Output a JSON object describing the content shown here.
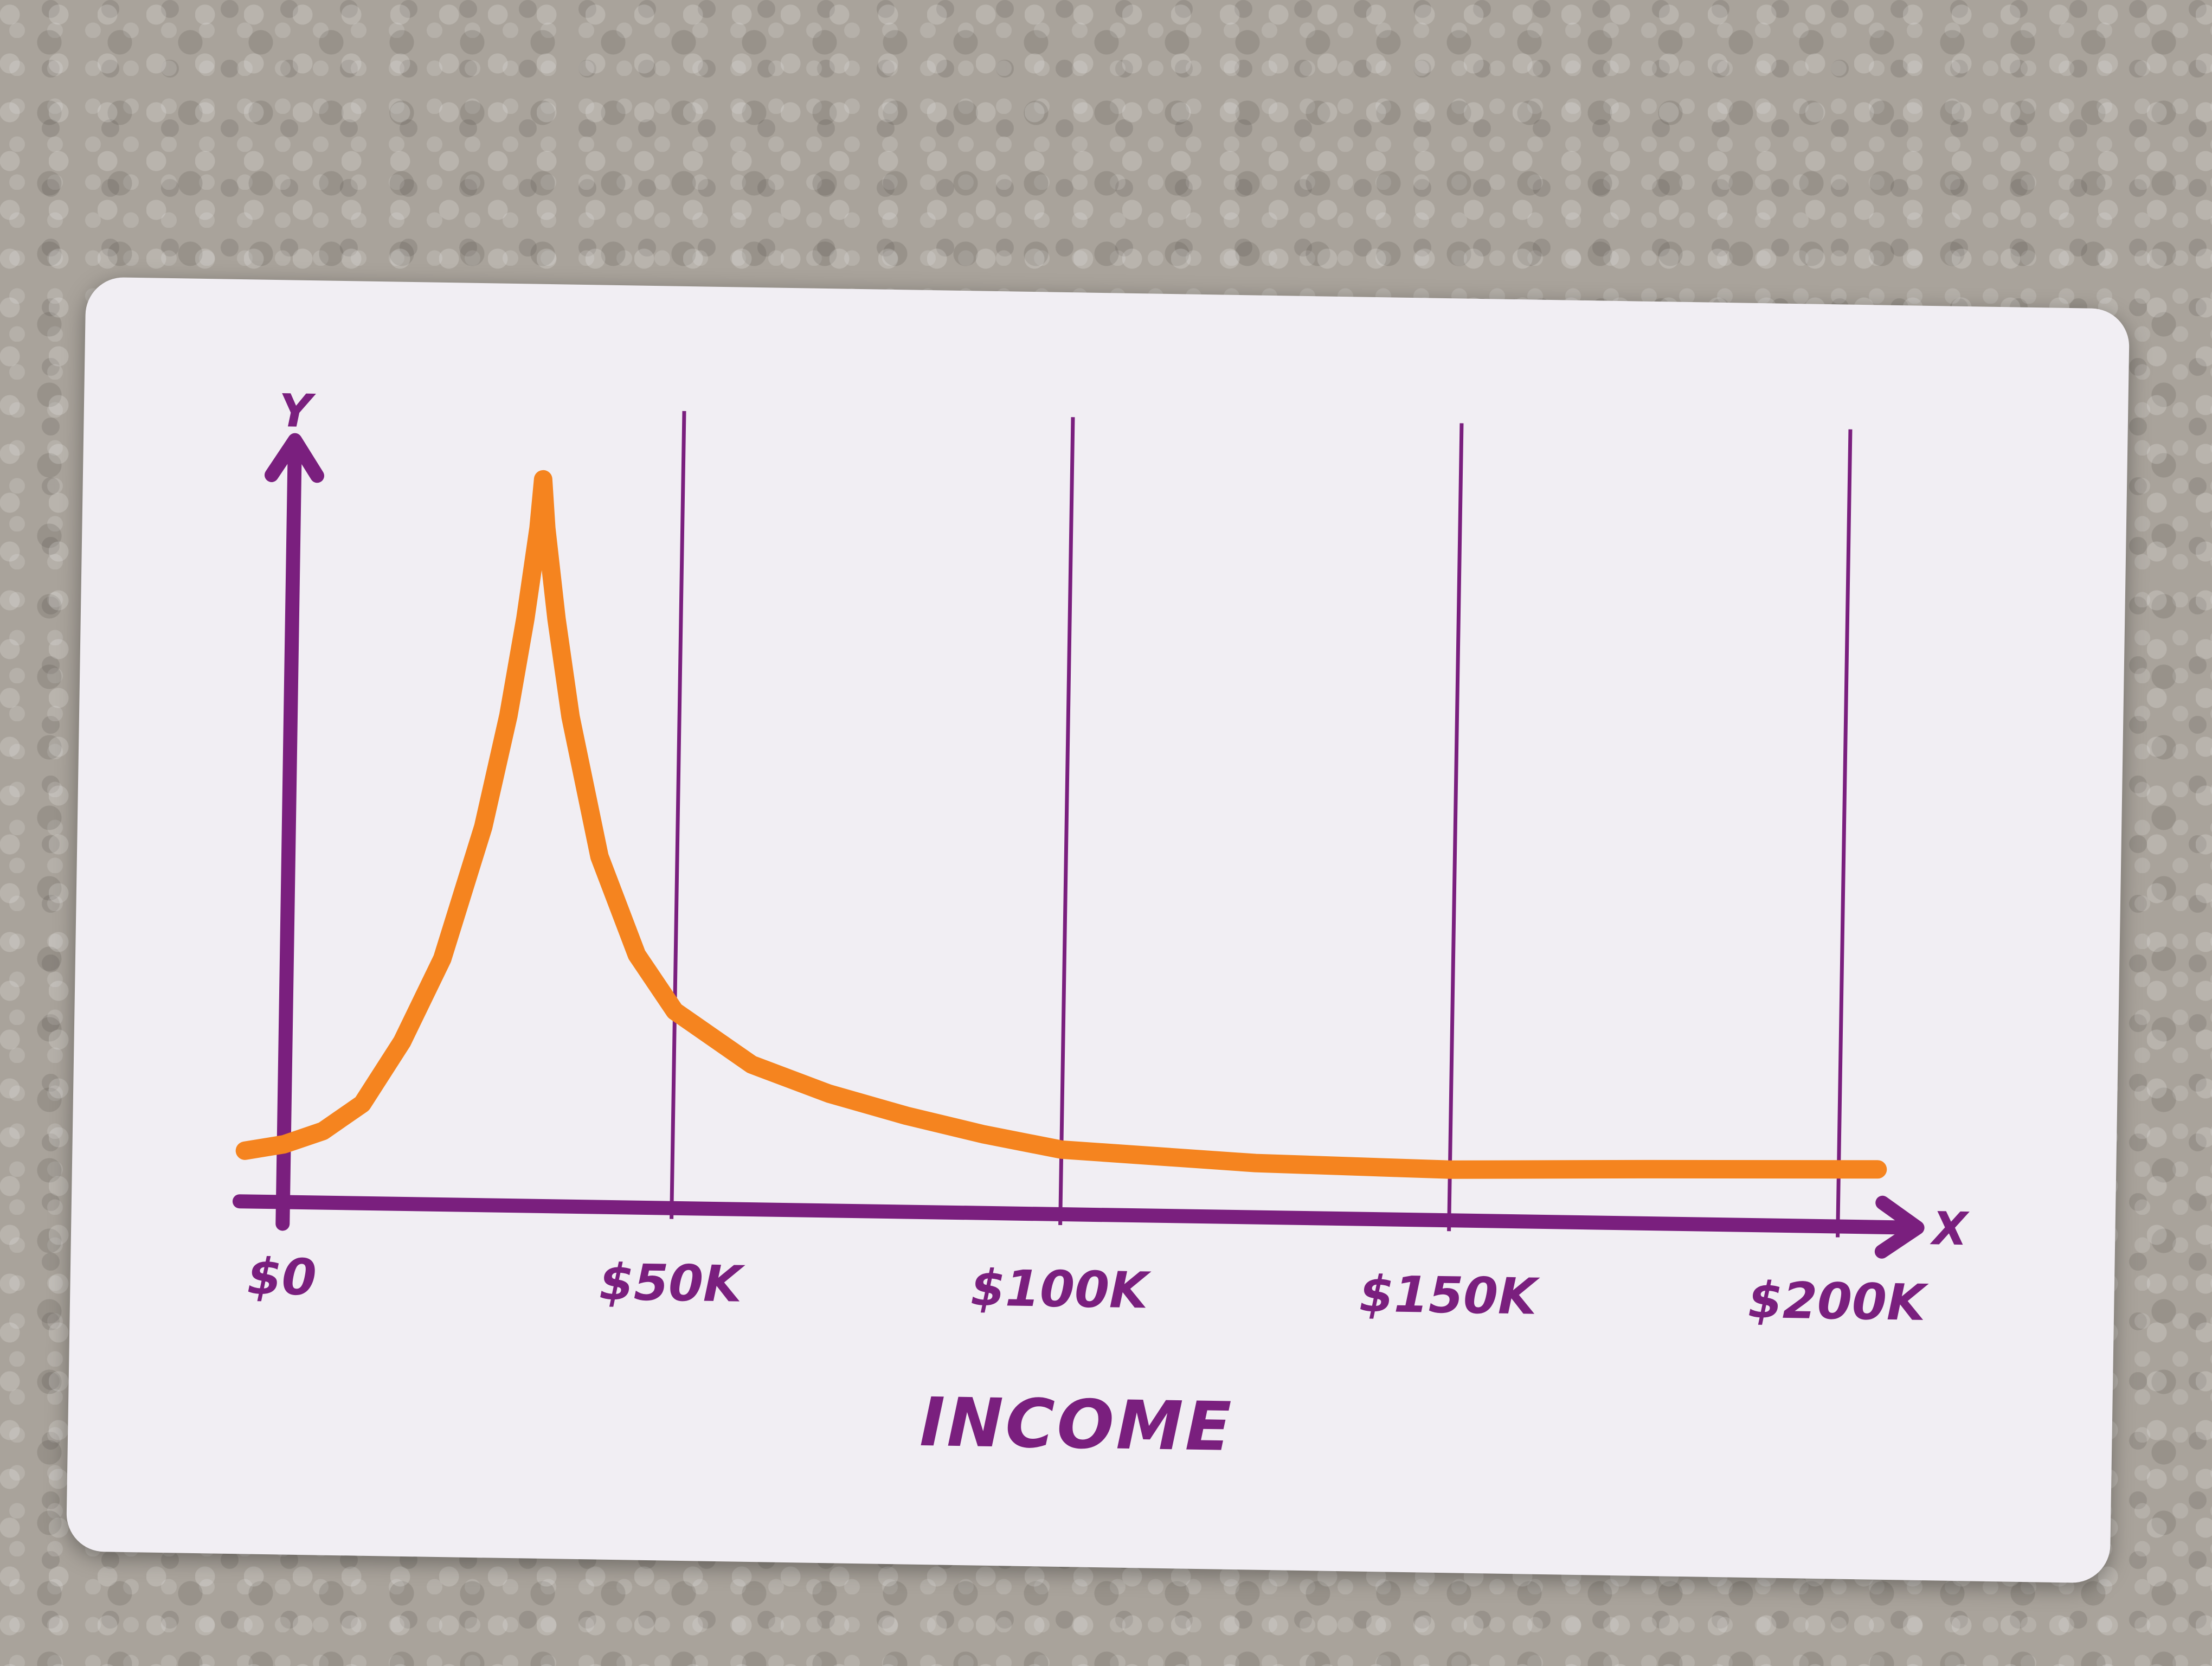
{
  "chart_data": {
    "type": "line",
    "title": "",
    "xlabel": "INCOME",
    "ylabel": "",
    "x_axis_letter": "X",
    "y_axis_letter": "Y",
    "xlim": [
      0,
      205000
    ],
    "ylim": [
      0,
      1
    ],
    "grid": "vertical lines at x ticks",
    "x_ticks": [
      {
        "value": 0,
        "label": "$0"
      },
      {
        "value": 50000,
        "label": "$50K"
      },
      {
        "value": 100000,
        "label": "$100K"
      },
      {
        "value": 150000,
        "label": "$150K"
      },
      {
        "value": 200000,
        "label": "$200K"
      }
    ],
    "series": [
      {
        "color": "#f5841f",
        "x": [
          -5000,
          0,
          5000,
          10000,
          15000,
          20000,
          25000,
          28000,
          30000,
          31500,
          32000,
          32500,
          34000,
          36000,
          40000,
          45000,
          50000,
          60000,
          70000,
          80000,
          90000,
          100000,
          125000,
          150000,
          175000,
          205000
        ],
        "y": [
          0.03,
          0.04,
          0.06,
          0.1,
          0.19,
          0.31,
          0.5,
          0.66,
          0.8,
          0.93,
          1.0,
          0.93,
          0.8,
          0.66,
          0.46,
          0.32,
          0.24,
          0.165,
          0.125,
          0.095,
          0.07,
          0.05,
          0.035,
          0.03,
          0.035,
          0.04
        ]
      }
    ]
  },
  "colors": {
    "axis": "#7a1f7e",
    "curve": "#f5841f",
    "card": "#f1eef3"
  }
}
